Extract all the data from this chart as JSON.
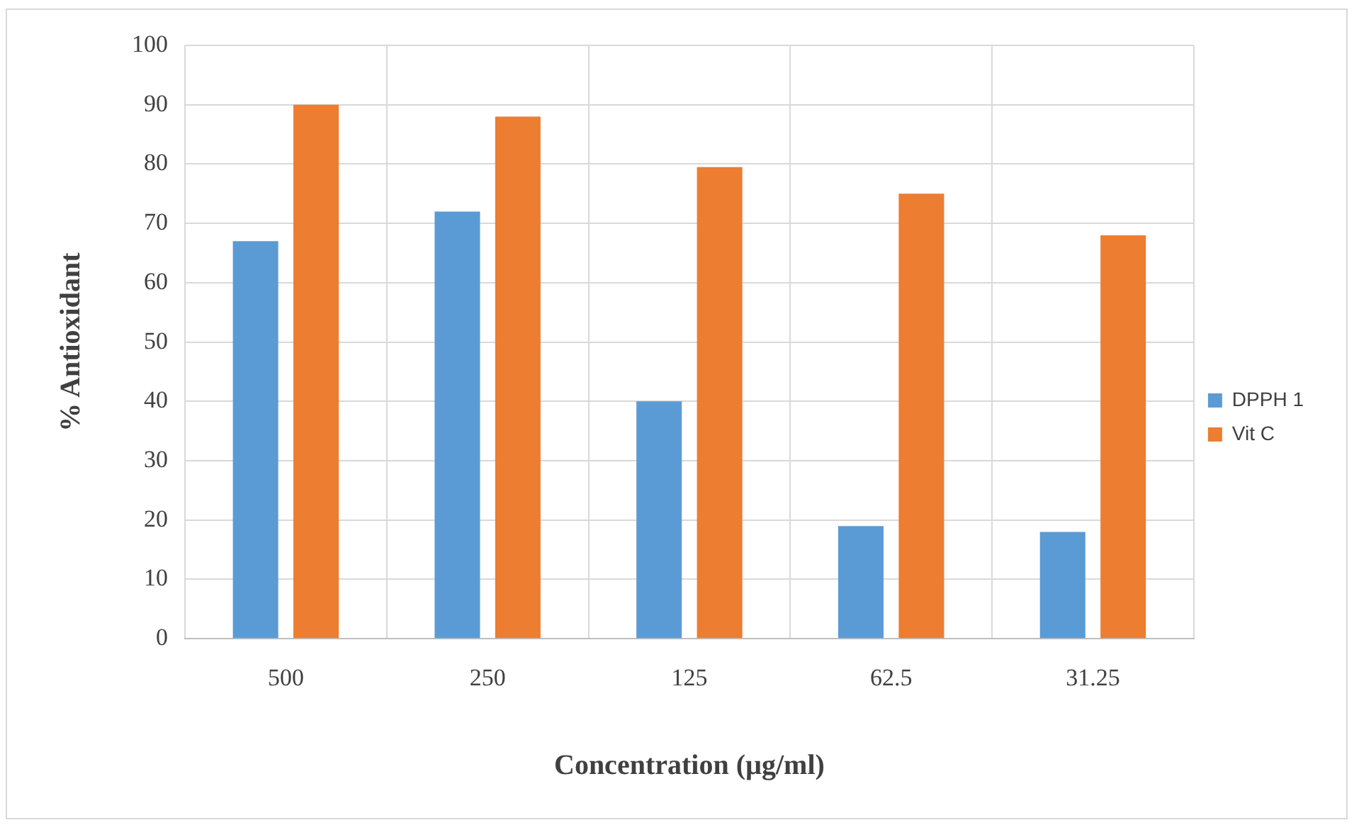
{
  "chart_data": {
    "type": "bar",
    "xlabel": "Concentration (µg/ml)",
    "ylabel": "% Antioxidant",
    "categories": [
      "500",
      "250",
      "125",
      "62.5",
      "31.25"
    ],
    "series": [
      {
        "name": "DPPH 1",
        "color": "#5b9bd5",
        "values": [
          67,
          72,
          40,
          19,
          18
        ]
      },
      {
        "name": "Vit C",
        "color": "#ed7d31",
        "values": [
          90,
          88,
          79.5,
          75,
          68
        ]
      }
    ],
    "ylim": [
      0,
      100
    ],
    "yticks": [
      0,
      10,
      20,
      30,
      40,
      50,
      60,
      70,
      80,
      90,
      100
    ],
    "grid": true,
    "legend": "right"
  }
}
